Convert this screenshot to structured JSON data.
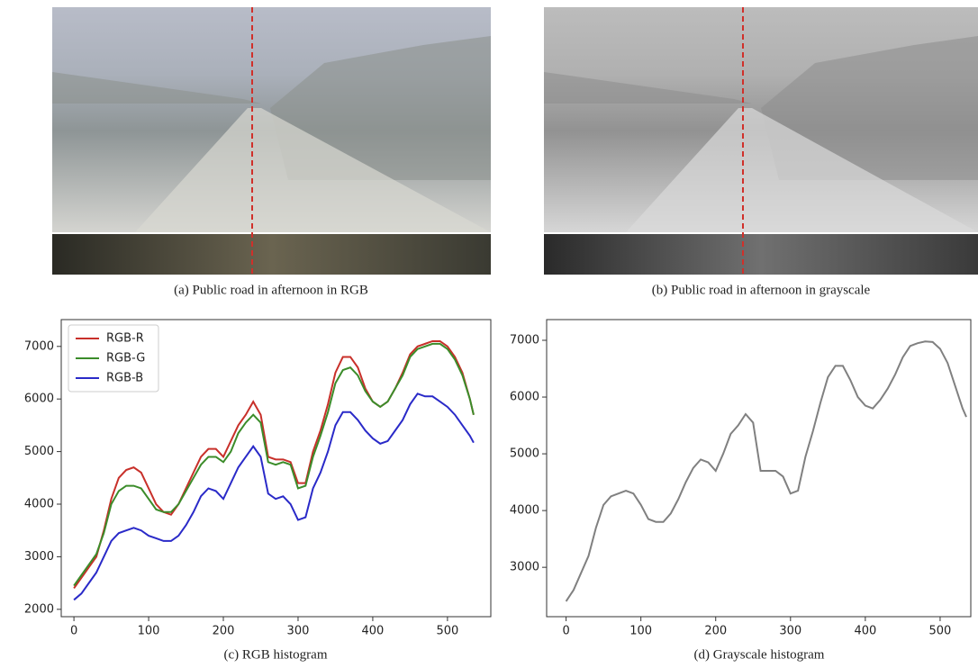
{
  "captions": [
    "(a) Public road in afternoon in RGB",
    "(b) Public road in afternoon in grayscale",
    "(c) RGB histogram",
    "(d) Grayscale histogram"
  ],
  "chart_data": [
    {
      "type": "line",
      "x": [
        0,
        10,
        20,
        30,
        40,
        50,
        60,
        70,
        80,
        90,
        100,
        110,
        120,
        130,
        140,
        150,
        160,
        170,
        180,
        190,
        200,
        210,
        220,
        230,
        240,
        250,
        260,
        270,
        280,
        290,
        300,
        310,
        320,
        330,
        340,
        350,
        360,
        370,
        380,
        390,
        400,
        410,
        420,
        430,
        440,
        450,
        460,
        470,
        480,
        490,
        500,
        510,
        520,
        530,
        535
      ],
      "series": [
        {
          "name": "RGB-R",
          "color": "#c8302a",
          "values": [
            2400,
            2600,
            2800,
            3000,
            3500,
            4100,
            4500,
            4650,
            4700,
            4600,
            4300,
            4000,
            3850,
            3800,
            4000,
            4300,
            4600,
            4900,
            5050,
            5050,
            4900,
            5200,
            5500,
            5700,
            5950,
            5700,
            4900,
            4850,
            4850,
            4800,
            4400,
            4400,
            5000,
            5400,
            5900,
            6500,
            6800,
            6800,
            6600,
            6200,
            5950,
            5850,
            5950,
            6200,
            6500,
            6850,
            7000,
            7050,
            7100,
            7100,
            7000,
            6800,
            6500,
            6000,
            5700
          ]
        },
        {
          "name": "RGB-G",
          "color": "#3b8c2a",
          "values": [
            2450,
            2650,
            2850,
            3050,
            3450,
            4000,
            4250,
            4350,
            4350,
            4300,
            4100,
            3900,
            3850,
            3850,
            4000,
            4250,
            4500,
            4750,
            4900,
            4900,
            4800,
            5000,
            5350,
            5550,
            5700,
            5550,
            4800,
            4750,
            4800,
            4750,
            4300,
            4350,
            4900,
            5300,
            5750,
            6300,
            6550,
            6600,
            6450,
            6150,
            5950,
            5850,
            5950,
            6200,
            6450,
            6800,
            6950,
            7000,
            7050,
            7050,
            6950,
            6750,
            6450,
            6000,
            5700
          ]
        },
        {
          "name": "RGB-B",
          "color": "#2a2ac8",
          "values": [
            2180,
            2300,
            2500,
            2700,
            3000,
            3300,
            3450,
            3500,
            3550,
            3500,
            3400,
            3350,
            3300,
            3300,
            3400,
            3600,
            3850,
            4150,
            4300,
            4250,
            4100,
            4400,
            4700,
            4900,
            5100,
            4900,
            4200,
            4100,
            4150,
            4000,
            3700,
            3750,
            4300,
            4600,
            5000,
            5500,
            5750,
            5750,
            5600,
            5400,
            5250,
            5150,
            5200,
            5400,
            5600,
            5900,
            6100,
            6050,
            6050,
            5950,
            5850,
            5700,
            5500,
            5300,
            5170
          ]
        }
      ],
      "xlim": [
        -17,
        558
      ],
      "ylim": [
        1860,
        7510
      ],
      "xticks": [
        0,
        100,
        200,
        300,
        400,
        500
      ],
      "yticks": [
        2000,
        3000,
        4000,
        5000,
        6000,
        7000
      ],
      "legend": "upper left"
    },
    {
      "type": "line",
      "x": [
        0,
        10,
        20,
        30,
        40,
        50,
        60,
        70,
        80,
        90,
        100,
        110,
        120,
        130,
        140,
        150,
        160,
        170,
        180,
        190,
        200,
        210,
        220,
        230,
        240,
        250,
        260,
        270,
        280,
        290,
        300,
        310,
        320,
        330,
        340,
        350,
        360,
        370,
        380,
        390,
        400,
        410,
        420,
        430,
        440,
        450,
        460,
        470,
        480,
        490,
        500,
        510,
        520,
        530,
        535
      ],
      "series": [
        {
          "color": "#808080",
          "values": [
            2400,
            2600,
            2900,
            3200,
            3700,
            4100,
            4250,
            4300,
            4350,
            4300,
            4100,
            3850,
            3800,
            3800,
            3950,
            4200,
            4500,
            4750,
            4900,
            4850,
            4700,
            5000,
            5350,
            5500,
            5700,
            5550,
            4700,
            4700,
            4700,
            4600,
            4300,
            4350,
            4950,
            5400,
            5900,
            6350,
            6550,
            6550,
            6300,
            6000,
            5850,
            5800,
            5950,
            6150,
            6400,
            6700,
            6900,
            6950,
            6980,
            6970,
            6850,
            6600,
            6200,
            5800,
            5650
          ]
        }
      ],
      "xlim": [
        -26,
        541
      ],
      "ylim": [
        2130,
        7365
      ],
      "xticks": [
        0,
        100,
        200,
        300,
        400,
        500
      ],
      "yticks": [
        3000,
        4000,
        5000,
        6000,
        7000
      ]
    }
  ]
}
